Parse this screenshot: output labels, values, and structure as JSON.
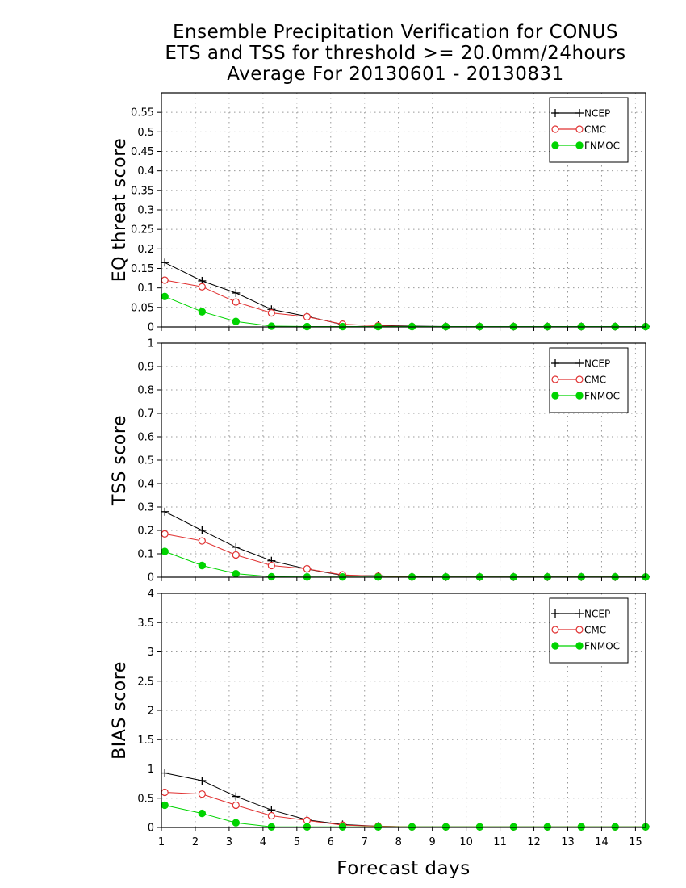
{
  "title_lines": [
    "Ensemble Precipitation Verification for CONUS",
    "ETS and TSS for threshold >= 20.0mm/24hours",
    "Average For 20130601 - 20130831"
  ],
  "xlabel": "Forecast days",
  "colors": {
    "NCEP": "#000000",
    "CMC": "#e03030",
    "FNMOC": "#00d400",
    "grid": "#999999"
  },
  "chart_data": [
    {
      "type": "line",
      "ylabel": "EQ threat score",
      "xlim": [
        1,
        15.3
      ],
      "ylim": [
        0,
        0.6
      ],
      "xticks": [
        1,
        2,
        3,
        4,
        5,
        6,
        7,
        8,
        9,
        10,
        11,
        12,
        13,
        14,
        15
      ],
      "yticks": [
        0,
        0.05,
        0.1,
        0.15,
        0.2,
        0.25,
        0.3,
        0.35,
        0.4,
        0.45,
        0.5,
        0.55
      ],
      "ytick_labels": [
        "0",
        "0.05",
        "0.1",
        "0.15",
        "0.2",
        "0.25",
        "0.3",
        "0.35",
        "0.4",
        "0.45",
        "0.5",
        "0.55"
      ],
      "grid": true,
      "legend": "top-right",
      "x": [
        1.1,
        2.2,
        3.2,
        4.25,
        5.3,
        6.35,
        7.4,
        8.4,
        9.4,
        10.4,
        11.4,
        12.4,
        13.4,
        14.4,
        15.4
      ],
      "series": [
        {
          "name": "NCEP",
          "marker": "plus",
          "values": [
            0.165,
            0.118,
            0.087,
            0.045,
            0.027,
            0.006,
            0.004,
            0.002,
            0.001,
            0.001,
            0.001,
            0.001,
            0.001,
            0.001,
            0.001
          ]
        },
        {
          "name": "CMC",
          "marker": "open-circle",
          "values": [
            0.12,
            0.103,
            0.064,
            0.036,
            0.026,
            0.007,
            0.003,
            0.001,
            0.001,
            0.001,
            0.001,
            0.001,
            0.001,
            0.001,
            0.001
          ]
        },
        {
          "name": "FNMOC",
          "marker": "filled-circle",
          "values": [
            0.078,
            0.039,
            0.014,
            0.002,
            0.001,
            0.001,
            0.001,
            0.001,
            0.001,
            0.001,
            0.001,
            0.001,
            0.001,
            0.001,
            0.001
          ]
        }
      ]
    },
    {
      "type": "line",
      "ylabel": "TSS score",
      "xlim": [
        1,
        15.3
      ],
      "ylim": [
        0,
        1
      ],
      "xticks": [
        1,
        2,
        3,
        4,
        5,
        6,
        7,
        8,
        9,
        10,
        11,
        12,
        13,
        14,
        15
      ],
      "yticks": [
        0,
        0.1,
        0.2,
        0.3,
        0.4,
        0.5,
        0.6,
        0.7,
        0.8,
        0.9,
        1
      ],
      "ytick_labels": [
        "0",
        "0.1",
        "0.2",
        "0.3",
        "0.4",
        "0.5",
        "0.6",
        "0.7",
        "0.8",
        "0.9",
        "1"
      ],
      "grid": true,
      "legend": "top-right",
      "x": [
        1.1,
        2.2,
        3.2,
        4.25,
        5.3,
        6.35,
        7.4,
        8.4,
        9.4,
        10.4,
        11.4,
        12.4,
        13.4,
        14.4,
        15.4
      ],
      "series": [
        {
          "name": "NCEP",
          "marker": "plus",
          "values": [
            0.28,
            0.2,
            0.128,
            0.07,
            0.035,
            0.008,
            0.006,
            0.002,
            0.001,
            0.001,
            0.001,
            0.001,
            0.001,
            0.001,
            0.001
          ]
        },
        {
          "name": "CMC",
          "marker": "open-circle",
          "values": [
            0.185,
            0.155,
            0.095,
            0.05,
            0.036,
            0.01,
            0.004,
            0.001,
            0.001,
            0.001,
            0.001,
            0.001,
            0.001,
            0.001,
            0.001
          ]
        },
        {
          "name": "FNMOC",
          "marker": "filled-circle",
          "values": [
            0.11,
            0.05,
            0.015,
            0.002,
            0.001,
            0.001,
            0.001,
            0.001,
            0.001,
            0.001,
            0.001,
            0.001,
            0.001,
            0.001,
            0.001
          ]
        }
      ]
    },
    {
      "type": "line",
      "ylabel": "BIAS score",
      "xlim": [
        1,
        15.3
      ],
      "ylim": [
        0,
        4
      ],
      "xticks": [
        1,
        2,
        3,
        4,
        5,
        6,
        7,
        8,
        9,
        10,
        11,
        12,
        13,
        14,
        15
      ],
      "xtick_labels": [
        "1",
        "2",
        "3",
        "4",
        "5",
        "6",
        "7",
        "8",
        "9",
        "10",
        "11",
        "12",
        "13",
        "14",
        "15"
      ],
      "yticks": [
        0,
        0.5,
        1,
        1.5,
        2,
        2.5,
        3,
        3.5,
        4
      ],
      "ytick_labels": [
        "0",
        "0.5",
        "1",
        "1.5",
        "2",
        "2.5",
        "3",
        "3.5",
        "4"
      ],
      "grid": true,
      "legend": "top-right",
      "x": [
        1.1,
        2.2,
        3.2,
        4.25,
        5.3,
        6.35,
        7.4,
        8.4,
        9.4,
        10.4,
        11.4,
        12.4,
        13.4,
        14.4,
        15.4
      ],
      "series": [
        {
          "name": "NCEP",
          "marker": "plus",
          "values": [
            0.93,
            0.8,
            0.53,
            0.3,
            0.13,
            0.05,
            0.02,
            0.01,
            0.01,
            0.01,
            0.01,
            0.01,
            0.01,
            0.01,
            0.01
          ]
        },
        {
          "name": "CMC",
          "marker": "open-circle",
          "values": [
            0.6,
            0.57,
            0.38,
            0.2,
            0.12,
            0.04,
            0.02,
            0.01,
            0.01,
            0.01,
            0.01,
            0.01,
            0.01,
            0.01,
            0.01
          ]
        },
        {
          "name": "FNMOC",
          "marker": "filled-circle",
          "values": [
            0.38,
            0.24,
            0.08,
            0.01,
            0.01,
            0.01,
            0.01,
            0.01,
            0.01,
            0.01,
            0.01,
            0.01,
            0.01,
            0.01,
            0.01
          ]
        }
      ]
    }
  ]
}
